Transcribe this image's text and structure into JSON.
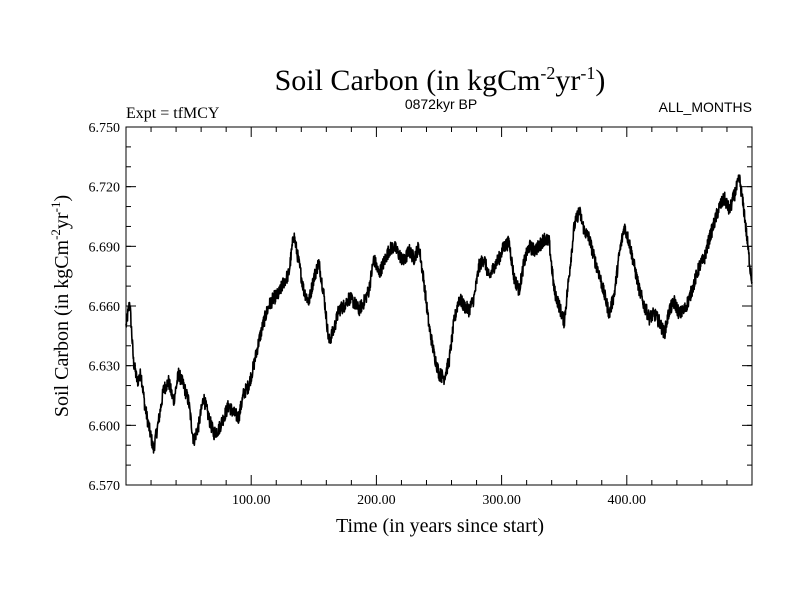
{
  "chart_data": {
    "type": "line",
    "title": "Soil Carbon (in kgCm",
    "title_parts": [
      "Soil Carbon (in kgCm",
      "-2",
      "yr",
      "-1",
      ")"
    ],
    "subtitle_left": "Expt = tfMCY",
    "subtitle_center": "0872kyr BP",
    "subtitle_right": "ALL_MONTHS",
    "xlabel": "Time (in years since start)",
    "ylabel_parts": [
      "Soil Carbon (in kgCm",
      "-2",
      "yr",
      "-1",
      ")"
    ],
    "xlim": [
      0,
      500
    ],
    "ylim": [
      6.57,
      6.75
    ],
    "x_ticks": [
      100,
      200,
      300,
      400
    ],
    "x_tick_labels": [
      "100.00",
      "200.00",
      "300.00",
      "400.00"
    ],
    "y_ticks": [
      6.57,
      6.6,
      6.63,
      6.66,
      6.69,
      6.72,
      6.75
    ],
    "y_tick_labels": [
      "6.570",
      "6.600",
      "6.630",
      "6.660",
      "6.690",
      "6.720",
      "6.750"
    ],
    "series": [
      {
        "name": "Soil Carbon",
        "color": "#000000",
        "x": [
          0,
          3,
          6,
          9,
          12,
          15,
          18,
          22,
          26,
          30,
          34,
          38,
          42,
          46,
          50,
          54,
          58,
          62,
          66,
          70,
          74,
          78,
          82,
          86,
          90,
          94,
          98,
          102,
          106,
          110,
          114,
          118,
          122,
          126,
          130,
          134,
          138,
          142,
          146,
          150,
          154,
          158,
          162,
          166,
          170,
          174,
          178,
          182,
          186,
          190,
          194,
          198,
          202,
          206,
          210,
          214,
          218,
          222,
          226,
          230,
          234,
          238,
          242,
          246,
          250,
          254,
          258,
          262,
          266,
          270,
          274,
          278,
          282,
          286,
          290,
          294,
          298,
          302,
          306,
          310,
          314,
          318,
          322,
          326,
          330,
          334,
          338,
          342,
          346,
          350,
          354,
          358,
          362,
          366,
          370,
          374,
          378,
          382,
          386,
          390,
          394,
          398,
          402,
          406,
          410,
          414,
          418,
          422,
          426,
          430,
          434,
          438,
          442,
          446,
          450,
          454,
          458,
          462,
          466,
          470,
          474,
          478,
          482,
          486,
          490,
          494,
          498,
          500
        ],
        "y": [
          6.65,
          6.662,
          6.632,
          6.622,
          6.626,
          6.61,
          6.6,
          6.588,
          6.602,
          6.618,
          6.622,
          6.612,
          6.626,
          6.62,
          6.612,
          6.592,
          6.6,
          6.614,
          6.604,
          6.596,
          6.598,
          6.604,
          6.61,
          6.606,
          6.604,
          6.616,
          6.62,
          6.63,
          6.642,
          6.652,
          6.66,
          6.664,
          6.666,
          6.672,
          6.676,
          6.696,
          6.682,
          6.668,
          6.662,
          6.674,
          6.682,
          6.666,
          6.642,
          6.648,
          6.658,
          6.66,
          6.664,
          6.662,
          6.658,
          6.662,
          6.668,
          6.684,
          6.676,
          6.682,
          6.688,
          6.69,
          6.686,
          6.682,
          6.688,
          6.684,
          6.69,
          6.672,
          6.65,
          6.636,
          6.626,
          6.624,
          6.632,
          6.652,
          6.664,
          6.66,
          6.658,
          6.664,
          6.68,
          6.684,
          6.674,
          6.68,
          6.684,
          6.69,
          6.692,
          6.674,
          6.668,
          6.682,
          6.69,
          6.688,
          6.69,
          6.694,
          6.692,
          6.668,
          6.66,
          6.652,
          6.676,
          6.7,
          6.708,
          6.698,
          6.694,
          6.684,
          6.676,
          6.666,
          6.656,
          6.666,
          6.686,
          6.7,
          6.692,
          6.68,
          6.668,
          6.66,
          6.654,
          6.656,
          6.652,
          6.646,
          6.658,
          6.662,
          6.656,
          6.658,
          6.664,
          6.672,
          6.68,
          6.684,
          6.694,
          6.702,
          6.71,
          6.714,
          6.708,
          6.716,
          6.724,
          6.706,
          6.682,
          6.672
        ]
      }
    ]
  }
}
